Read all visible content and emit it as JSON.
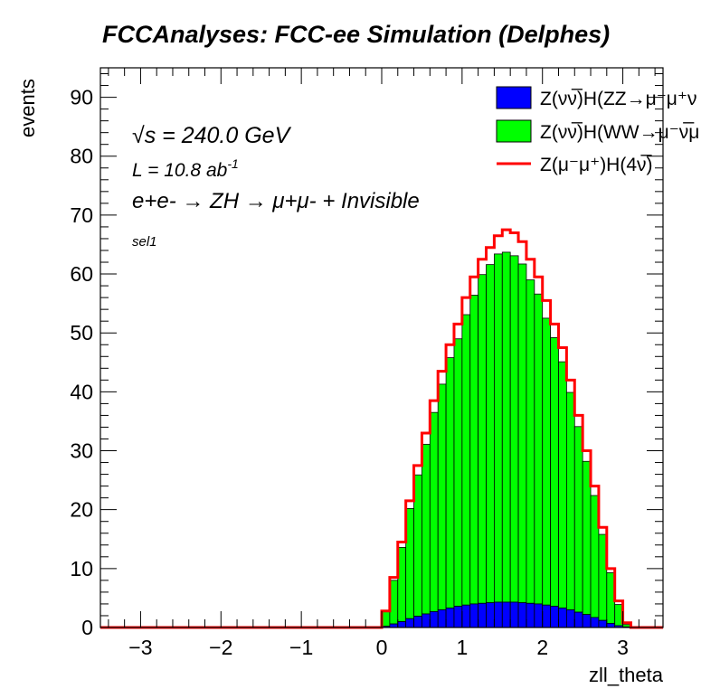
{
  "chart_data": {
    "type": "bar",
    "title": "FCCAnalyses: FCC-ee Simulation (Delphes)",
    "xlabel": "zll_theta",
    "ylabel": "events",
    "xlim": [
      -3.5,
      3.5
    ],
    "ylim": [
      0,
      95
    ],
    "x_ticks": [
      -3,
      -2,
      -1,
      0,
      1,
      2,
      3
    ],
    "x_tick_labels": [
      "−3",
      "−2",
      "−1",
      "0",
      "1",
      "2",
      "3"
    ],
    "y_ticks": [
      0,
      10,
      20,
      30,
      40,
      50,
      60,
      70,
      80,
      90
    ],
    "y_tick_labels": [
      "0",
      "10",
      "20",
      "30",
      "40",
      "50",
      "60",
      "70",
      "80",
      "90"
    ],
    "bins": {
      "low": 0.0,
      "width": 0.1,
      "count": 32
    },
    "annotations": {
      "energy": "√s = 240.0 GeV",
      "lumi_prefix": "L = 10.8 ab",
      "lumi_exp": "-1",
      "process": "e+e- → ZH → μ+μ- + Invisible",
      "selection": "sel1"
    },
    "legend_position": "top-right",
    "series": [
      {
        "name": "Z(νν̅)H(ZZ→μ⁻μ⁺ν̅)",
        "legend_text": "Z(νν̅)H(ZZ→μ⁻μ⁺ν",
        "style": "filled",
        "color": "#0000ff",
        "values": [
          0.2,
          0.6,
          1.0,
          1.5,
          1.9,
          2.3,
          2.7,
          3.0,
          3.3,
          3.6,
          3.8,
          4.0,
          4.1,
          4.2,
          4.3,
          4.3,
          4.3,
          4.2,
          4.1,
          4.0,
          3.8,
          3.6,
          3.3,
          3.0,
          2.6,
          2.2,
          1.7,
          1.2,
          0.7,
          0.3,
          0.1,
          0.0
        ]
      },
      {
        "name": "Z(νν̅)H(WW→μ⁻ν̅μ",
        "legend_text": "Z(νν̅)H(WW→μ⁻ν̅μ",
        "style": "filled-stacked",
        "color": "#00ff00",
        "values": [
          2.6,
          7.4,
          12.6,
          18.7,
          24.0,
          28.8,
          33.8,
          38.3,
          42.5,
          45.4,
          49.3,
          52.4,
          55.8,
          57.4,
          59.1,
          59.4,
          58.8,
          57.5,
          54.9,
          52.6,
          48.7,
          45.6,
          41.8,
          36.9,
          31.5,
          26.0,
          20.7,
          14.6,
          8.6,
          3.6,
          0.4,
          0.0
        ]
      },
      {
        "name": "Z(μ⁻μ⁺)H(4ν̅)",
        "legend_text": "Z(μ⁻μ⁺)H(4ν̅)",
        "style": "line",
        "color": "#ff0000",
        "values": [
          2.8,
          8.5,
          14.5,
          21.5,
          27.5,
          33.0,
          38.5,
          43.5,
          48.0,
          51.5,
          56.0,
          59.5,
          62.5,
          64.5,
          66.5,
          67.5,
          67.0,
          65.5,
          62.5,
          59.5,
          55.5,
          51.5,
          47.5,
          42.0,
          36.0,
          30.0,
          24.0,
          17.0,
          10.0,
          4.5,
          0.8,
          0.0
        ]
      }
    ]
  }
}
